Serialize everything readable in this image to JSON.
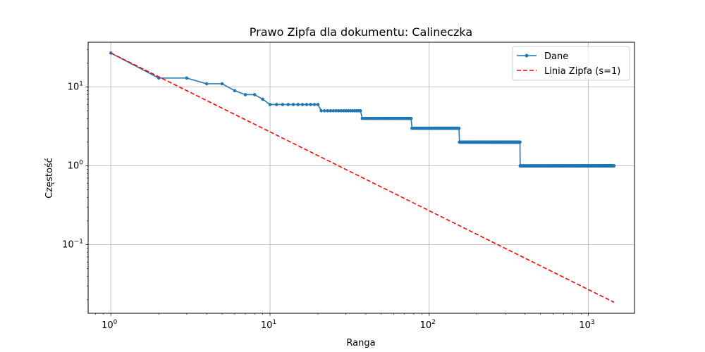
{
  "chart_data": {
    "type": "line",
    "title": "Prawo Zipfa dla dokumentu: Calineczka",
    "xlabel": "Ranga",
    "ylabel": "Częstość",
    "x_scale": "log",
    "y_scale": "log",
    "xlim": [
      0.72,
      1950
    ],
    "ylim": [
      0.0135,
      37
    ],
    "grid": true,
    "legend_position": "top-right",
    "x_ticks": [
      {
        "value": 1,
        "base": "10",
        "exp": "0"
      },
      {
        "value": 10,
        "base": "10",
        "exp": "1"
      },
      {
        "value": 100,
        "base": "10",
        "exp": "2"
      },
      {
        "value": 1000,
        "base": "10",
        "exp": "3"
      }
    ],
    "y_ticks": [
      {
        "value": 0.1,
        "base": "10",
        "exp": "−1"
      },
      {
        "value": 1,
        "base": "10",
        "exp": "0"
      },
      {
        "value": 10,
        "base": "10",
        "exp": "1"
      }
    ],
    "series": [
      {
        "name": "Dane",
        "style": "line-with-points",
        "color": "#1f77b4",
        "points": [
          [
            1,
            27
          ],
          [
            2,
            13
          ],
          [
            3,
            13
          ],
          [
            4,
            11
          ],
          [
            5,
            11
          ],
          [
            6,
            9
          ],
          [
            7,
            8
          ],
          [
            8,
            8
          ],
          [
            9,
            7
          ]
        ],
        "runs": [
          {
            "from": 10,
            "to": 20,
            "value": 6
          },
          {
            "from": 21,
            "to": 37,
            "value": 5
          },
          {
            "from": 38,
            "to": 77,
            "value": 4
          },
          {
            "from": 78,
            "to": 154,
            "value": 3
          },
          {
            "from": 155,
            "to": 372,
            "value": 2
          },
          {
            "from": 373,
            "to": 1450,
            "value": 1
          }
        ]
      },
      {
        "name": "Linia Zipfa (s=1)",
        "style": "dashed",
        "color": "#ff0000",
        "formula": "y = 27 / x",
        "x_range": [
          1,
          1450
        ]
      }
    ]
  }
}
